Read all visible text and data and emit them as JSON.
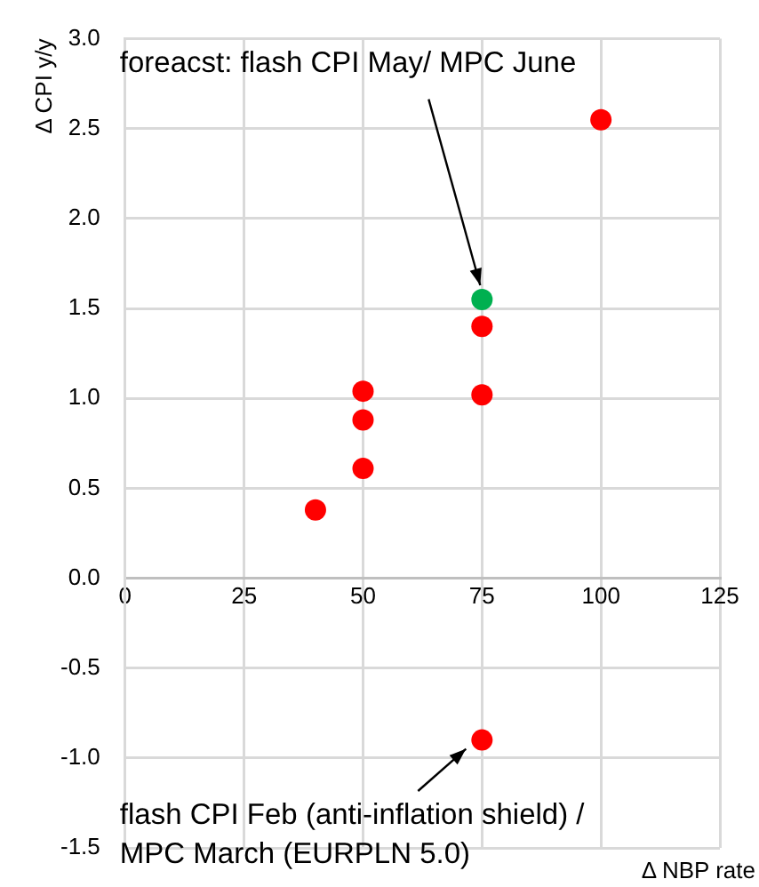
{
  "chart_data": {
    "type": "scatter",
    "xlabel": "Δ NBP rate",
    "ylabel": "Δ CPI y/y",
    "xlim": [
      0,
      125
    ],
    "xticks": [
      0,
      25,
      50,
      75,
      100,
      125
    ],
    "ylim": [
      -1.5,
      3.0
    ],
    "yticks": [
      -1.5,
      {
        "value": -1,
        "label": "-1.0"
      },
      -0.5,
      {
        "value": 0,
        "label": "0.0"
      },
      0.5,
      {
        "value": 1,
        "label": "1.0"
      },
      1.5,
      {
        "value": 2,
        "label": "2.0"
      },
      2.5,
      {
        "value": 3,
        "label": "3.0"
      }
    ],
    "grid": true,
    "marker": "circle",
    "series": [
      {
        "color": "#ff0000",
        "x": [
          40,
          50,
          50,
          50,
          75,
          75,
          75,
          100
        ],
        "values": [
          0.38,
          0.61,
          0.88,
          1.04,
          -0.9,
          1.02,
          1.4,
          2.55
        ]
      },
      {
        "color": "#00b050",
        "x": [
          75
        ],
        "values": [
          1.55
        ]
      }
    ],
    "annotations": [
      {
        "text": "foreacst: flash CPI May/ MPC June",
        "x": 75,
        "y": 1.55
      },
      {
        "text": "flash CPI Feb (anti-inflation shield) / MPC March (EURPLN 5.0)",
        "x": 75,
        "y": -0.9
      }
    ]
  }
}
